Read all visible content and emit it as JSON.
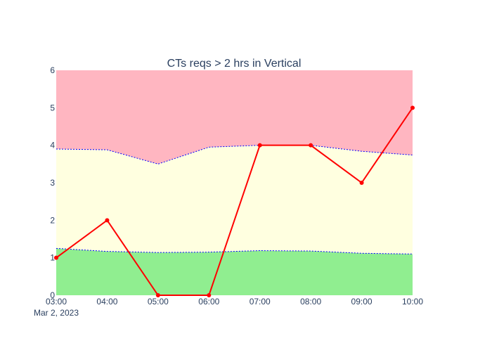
{
  "chart_data": {
    "type": "line",
    "title": "CTs reqs > 2 hrs in Vertical",
    "xlabel": "",
    "ylabel": "",
    "x_tick_labels": [
      "03:00",
      "04:00",
      "05:00",
      "06:00",
      "07:00",
      "08:00",
      "09:00",
      "10:00"
    ],
    "x_date_label": "Mar 2, 2023",
    "ylim": [
      0,
      6
    ],
    "y_ticks": [
      0,
      1,
      2,
      3,
      4,
      5,
      6
    ],
    "x": [
      "2023-03-02 03:00",
      "2023-03-02 04:00",
      "2023-03-02 05:00",
      "2023-03-02 06:00",
      "2023-03-02 07:00",
      "2023-03-02 08:00",
      "2023-03-02 09:00",
      "2023-03-02 10:00"
    ],
    "grid": false,
    "legend": "none",
    "series": [
      {
        "role": "lower-bound",
        "values": [
          1.25,
          1.17,
          1.14,
          1.15,
          1.19,
          1.18,
          1.12,
          1.1
        ],
        "color": "#0000ff",
        "dash": "dot"
      },
      {
        "role": "upper-bound",
        "values": [
          3.9,
          3.88,
          3.5,
          3.95,
          4.0,
          4.0,
          3.84,
          3.74
        ],
        "color": "#0000ff",
        "dash": "dot"
      },
      {
        "role": "actual",
        "values": [
          1,
          2,
          0,
          0,
          4,
          4,
          3,
          5
        ],
        "color": "#ff0000"
      }
    ],
    "bands": {
      "low_color": "#90ee90",
      "mid_color": "#ffffe0",
      "high_color": "#ffb6c1"
    }
  }
}
